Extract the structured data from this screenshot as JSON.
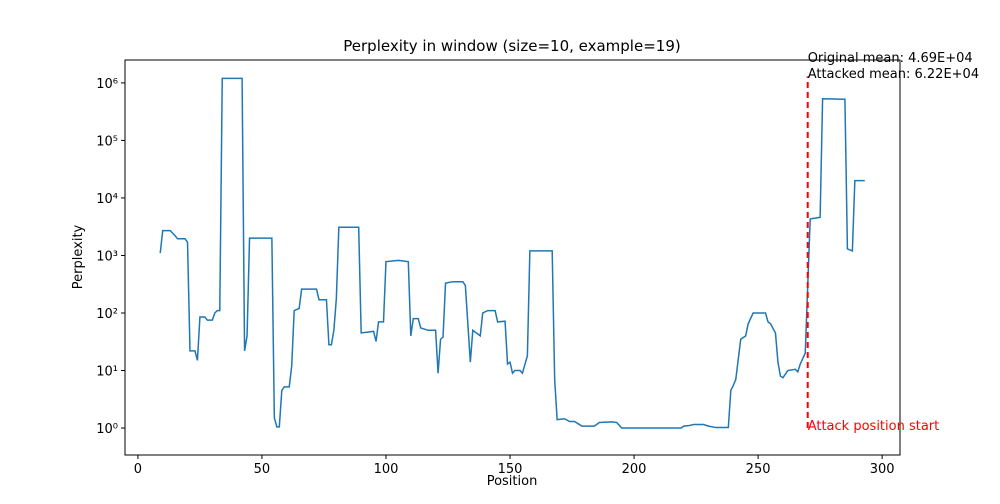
{
  "chart_data": {
    "type": "line",
    "title": "Perplexity in window (size=10, example=19)",
    "x_label": "Position",
    "y_label": "Perplexity",
    "y_scale": "log",
    "grid": false,
    "x": [
      9,
      10,
      13,
      15,
      16,
      19,
      20,
      21,
      23,
      24,
      25,
      27,
      28,
      30,
      31,
      32,
      33,
      34,
      42,
      43,
      44,
      45,
      54,
      55,
      56,
      57,
      58,
      59,
      61,
      62,
      63,
      65,
      66,
      72,
      73,
      76,
      77,
      78,
      79,
      80,
      81,
      89,
      90,
      95,
      96,
      97,
      99,
      100,
      105,
      109,
      110,
      111,
      113,
      114,
      117,
      120,
      121,
      122,
      123,
      124,
      127,
      131,
      132,
      134,
      135,
      138,
      139,
      141,
      144,
      145,
      148,
      149,
      150,
      151,
      152,
      154,
      155,
      157,
      158,
      167,
      168,
      169,
      172,
      174,
      176,
      178,
      179,
      184,
      186,
      191,
      193,
      195,
      219,
      220,
      222,
      224,
      228,
      230,
      233,
      238,
      239,
      240,
      241,
      243,
      245,
      246,
      248,
      253,
      254,
      255,
      257,
      258,
      259,
      260,
      262,
      265,
      266,
      267,
      269,
      271,
      272,
      275,
      276,
      285,
      286,
      288,
      289,
      293
    ],
    "series": [
      {
        "name": "Perplexity",
        "color": "#1f77b4",
        "values": [
          1100,
          2700,
          2700,
          2200,
          1950,
          1950,
          1700,
          22,
          22,
          15,
          85,
          85,
          75,
          75,
          100,
          110,
          110,
          1200000,
          1200000,
          22,
          40,
          2000,
          2000,
          1.5,
          1.05,
          1.05,
          4.5,
          5.2,
          5.2,
          12,
          110,
          120,
          260,
          260,
          170,
          170,
          28,
          28,
          50,
          180,
          3100,
          3100,
          45,
          48,
          32,
          70,
          70,
          780,
          820,
          780,
          40,
          80,
          80,
          55,
          50,
          50,
          9,
          35,
          38,
          330,
          350,
          350,
          300,
          14,
          50,
          40,
          100,
          110,
          110,
          70,
          72,
          13,
          14,
          9,
          10,
          10,
          9,
          18,
          1200,
          1200,
          7,
          1.4,
          1.45,
          1.3,
          1.3,
          1.15,
          1.08,
          1.08,
          1.25,
          1.28,
          1.25,
          1.0,
          1.0,
          1.08,
          1.1,
          1.15,
          1.15,
          1.08,
          1.02,
          1.02,
          4.5,
          5.5,
          7,
          35,
          40,
          65,
          100,
          100,
          70,
          65,
          45,
          14,
          8,
          7.5,
          10,
          10.5,
          9.5,
          13,
          20,
          4300,
          4400,
          4600,
          530000,
          520000,
          1300,
          1200,
          20000,
          20000
        ]
      }
    ],
    "xlim": [
      -5.2,
      307.2
    ],
    "xticks": [
      0,
      50,
      100,
      150,
      200,
      250,
      300
    ],
    "ylim": [
      0.34,
      2500000
    ],
    "yticks": [
      {
        "value": 1,
        "label": "10⁰"
      },
      {
        "value": 10,
        "label": "10¹"
      },
      {
        "value": 100,
        "label": "10²"
      },
      {
        "value": 1000,
        "label": "10³"
      },
      {
        "value": 10000,
        "label": "10⁴"
      },
      {
        "value": 100000,
        "label": "10⁵"
      },
      {
        "value": 1000000,
        "label": "10⁶"
      }
    ],
    "attack_line": {
      "x": 270,
      "ymin": 1,
      "ymax": 1300000,
      "color": "#ff0000",
      "label": "Attack position start"
    },
    "annotations": [
      "Original mean: 4.69E+04",
      "Attacked mean: 6.22E+04"
    ]
  }
}
